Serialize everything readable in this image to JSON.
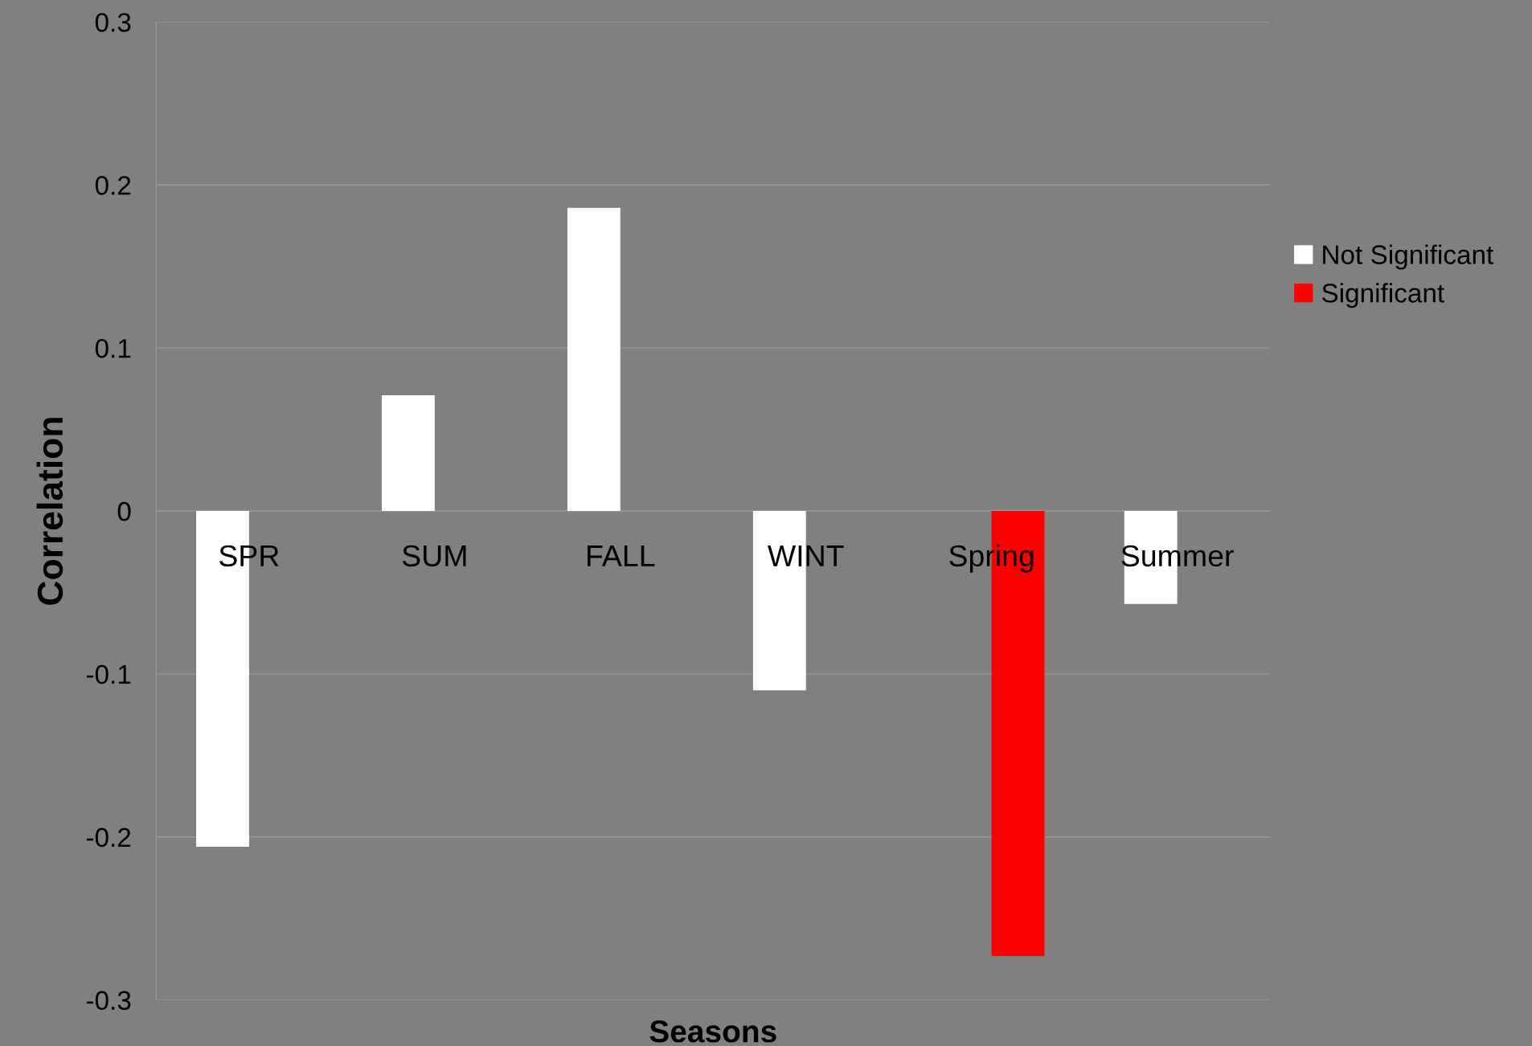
{
  "chart_data": {
    "type": "bar",
    "xlabel": "Seasons",
    "ylabel": "Correlation",
    "categories": [
      "SPR",
      "SUM",
      "FALL",
      "WINT",
      "Spring",
      "Summer"
    ],
    "series": [
      {
        "name": "Not Significant",
        "color": "#ffffff",
        "values": [
          -0.206,
          0.071,
          0.186,
          -0.11,
          null,
          -0.057
        ]
      },
      {
        "name": "Significant",
        "color": "#ff0000",
        "values": [
          null,
          null,
          null,
          null,
          -0.273,
          null
        ]
      }
    ],
    "ylim": [
      -0.3,
      0.3
    ],
    "yticks": [
      -0.3,
      -0.2,
      -0.1,
      0,
      0.1,
      0.2,
      0.3
    ],
    "grid": "y",
    "legend": "right"
  }
}
